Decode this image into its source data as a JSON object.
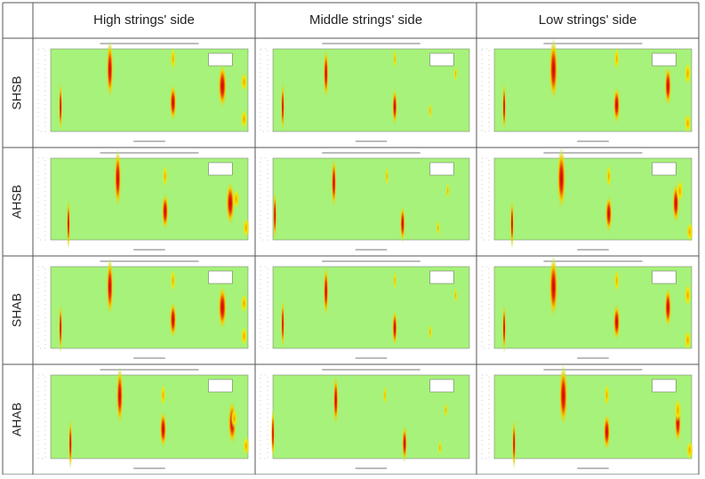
{
  "columns": [
    "High strings' side",
    "Middle strings' side",
    "Low strings' side"
  ],
  "rows": [
    "SHSB",
    "AHSB",
    "SHAB",
    "AHAB"
  ]
}
